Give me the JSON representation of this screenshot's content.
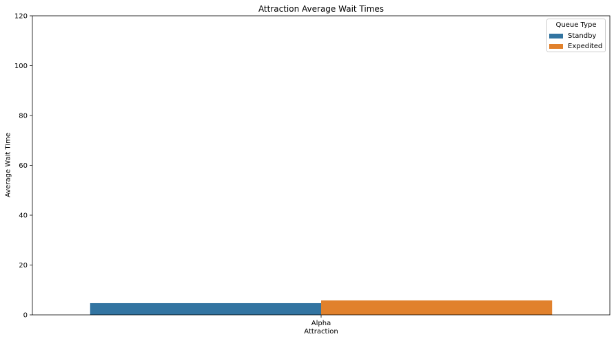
{
  "chart_data": {
    "type": "bar",
    "title": "Attraction Average Wait Times",
    "xlabel": "Attraction",
    "ylabel": "Average Wait Time",
    "categories": [
      "Alpha"
    ],
    "series": [
      {
        "name": "Standby",
        "values": [
          4.7
        ],
        "color": "#3274a1"
      },
      {
        "name": "Expedited",
        "values": [
          5.8
        ],
        "color": "#e1812c"
      }
    ],
    "ylim": [
      0,
      120
    ],
    "yticks": [
      "0",
      "20",
      "40",
      "60",
      "80",
      "100",
      "120"
    ],
    "legend": {
      "title": "Queue Type",
      "placement": "top-right"
    },
    "grid": false
  }
}
